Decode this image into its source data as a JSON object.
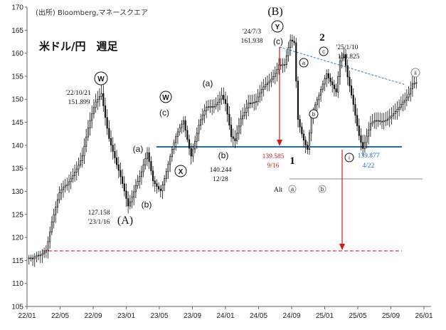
{
  "source_label": "(出所)  Bloomberg,マネースクエア",
  "title": "米ドル/円　週足",
  "chart_data": {
    "type": "candlestick",
    "frequency": "weekly",
    "ylim": [
      105,
      170
    ],
    "y_ticks": [
      105,
      110,
      115,
      120,
      125,
      130,
      135,
      140,
      145,
      150,
      155,
      160,
      165,
      170
    ],
    "x_ticks": [
      "22/01",
      "22/05",
      "22/09",
      "23/01",
      "23/05",
      "23/09",
      "24/01",
      "24/05",
      "24/09",
      "25/01",
      "25/05",
      "25/09",
      "26/01"
    ],
    "grid": false,
    "path": [
      [
        0,
        115.5
      ],
      [
        3,
        114.5
      ],
      [
        7,
        116
      ],
      [
        10,
        118
      ],
      [
        13,
        124
      ],
      [
        17,
        129
      ],
      [
        21,
        131
      ],
      [
        25,
        135
      ],
      [
        29,
        138
      ],
      [
        32,
        143
      ],
      [
        36,
        149
      ],
      [
        39,
        151.9
      ],
      [
        43,
        142
      ],
      [
        47,
        135
      ],
      [
        50,
        131
      ],
      [
        53,
        127.2
      ],
      [
        57,
        132
      ],
      [
        60,
        134
      ],
      [
        63,
        137.5
      ],
      [
        66,
        132
      ],
      [
        70,
        131
      ],
      [
        74,
        136
      ],
      [
        78,
        141
      ],
      [
        82,
        145.5
      ],
      [
        86,
        138.5
      ],
      [
        90,
        144
      ],
      [
        94,
        147.5
      ],
      [
        98,
        149
      ],
      [
        102,
        151.5
      ],
      [
        104,
        149
      ],
      [
        107,
        141
      ],
      [
        109,
        140.2
      ],
      [
        112,
        146
      ],
      [
        116,
        150
      ],
      [
        120,
        149
      ],
      [
        124,
        152
      ],
      [
        128,
        155
      ],
      [
        132,
        158
      ],
      [
        135,
        157
      ],
      [
        138,
        162
      ],
      [
        140,
        161.9
      ],
      [
        142,
        146
      ],
      [
        145,
        142
      ],
      [
        147,
        139.6
      ],
      [
        149,
        146
      ],
      [
        153,
        150
      ],
      [
        157,
        156
      ],
      [
        160,
        154
      ],
      [
        162,
        152
      ],
      [
        164,
        158
      ],
      [
        166,
        158.8
      ],
      [
        168,
        154
      ],
      [
        171,
        149
      ],
      [
        174,
        143
      ],
      [
        176,
        140
      ],
      [
        178,
        142
      ],
      [
        180,
        144
      ],
      [
        185,
        145
      ],
      [
        190,
        147
      ],
      [
        195,
        147.5
      ],
      [
        198,
        149
      ],
      [
        200,
        151
      ],
      [
        202,
        154
      ],
      [
        204,
        154.5
      ]
    ],
    "annotations": [
      {
        "text": "'22/10/21",
        "value": "151.899"
      },
      {
        "text": "'23/1/16",
        "value": "127.158"
      },
      {
        "text": "'24/7/3",
        "value": "161.938"
      },
      {
        "text": "12/28",
        "value": "140.244"
      },
      {
        "text": "9/16",
        "value": "139.585"
      },
      {
        "text": "'25/1/10",
        "value": "158.825"
      },
      {
        "text": "4/22",
        "value": "139.877"
      }
    ],
    "wave_labels": {
      "W1": "W",
      "A": "(A)",
      "a1": "(a)",
      "b1": "(b)",
      "W2": "W",
      "c1": "(c)",
      "X": "X",
      "a2": "(a)",
      "b2": "(b)",
      "B": "(B)",
      "Y": "Y",
      "c2": "(c)",
      "one": "1",
      "two": "2",
      "ca": "a",
      "cb": "b",
      "cc": "c",
      "ci": "i",
      "cii": "ii",
      "alt": "Alt",
      "alt_a": "a",
      "alt_b": "b"
    },
    "horizontal_lines": [
      {
        "value": 140,
        "color": "#1f6fbf"
      },
      {
        "value": 117.5,
        "color": "#d9383a",
        "style": "dashed"
      },
      {
        "value": 133,
        "color": "#888888"
      }
    ],
    "colors": {
      "candle": "#111111",
      "support": "#1f6fbf",
      "target": "#d9383a",
      "trend": "#3a78c9",
      "annotation_red": "#d01c1c",
      "annotation_blue": "#1f6fbf"
    }
  }
}
